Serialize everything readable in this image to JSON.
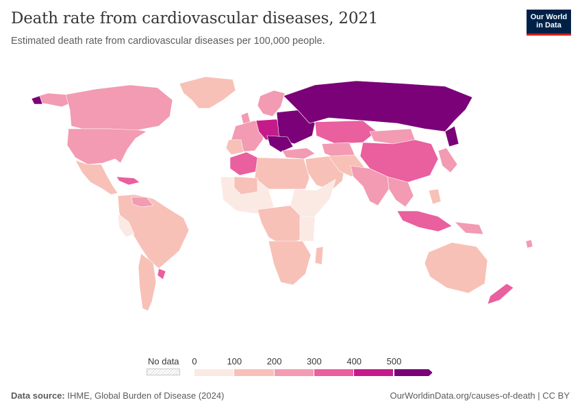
{
  "header": {
    "title": "Death rate from cardiovascular diseases, 2021",
    "subtitle": "Estimated death rate from cardiovascular diseases per 100,000 people."
  },
  "logo": {
    "line1": "Our World",
    "line2": "in Data"
  },
  "legend": {
    "no_data_label": "No data",
    "ticks": [
      "0",
      "100",
      "200",
      "300",
      "400",
      "500"
    ],
    "bins": [
      {
        "from": 0,
        "to": 100,
        "color": "#fbe9e4"
      },
      {
        "from": 100,
        "to": 200,
        "color": "#f7c1b8"
      },
      {
        "from": 200,
        "to": 300,
        "color": "#f29bb2"
      },
      {
        "from": 300,
        "to": 400,
        "color": "#ea5f9e"
      },
      {
        "from": 400,
        "to": 500,
        "color": "#c51b8a"
      },
      {
        "from": 500,
        "to": null,
        "color": "#7a0177"
      }
    ]
  },
  "footer": {
    "source_label": "Data source:",
    "source_text": " IHME, Global Burden of Disease (2024)",
    "url_text": "OurWorldinData.org/causes-of-death | CC BY"
  },
  "map_colors": {
    "ocean": "#ffffff",
    "border": "#ffffff",
    "bin0": "#fbe9e4",
    "bin1": "#f7c1b8",
    "bin2": "#f29bb2",
    "bin3": "#ea5f9e",
    "bin4": "#c51b8a",
    "bin5": "#7a0177"
  }
}
